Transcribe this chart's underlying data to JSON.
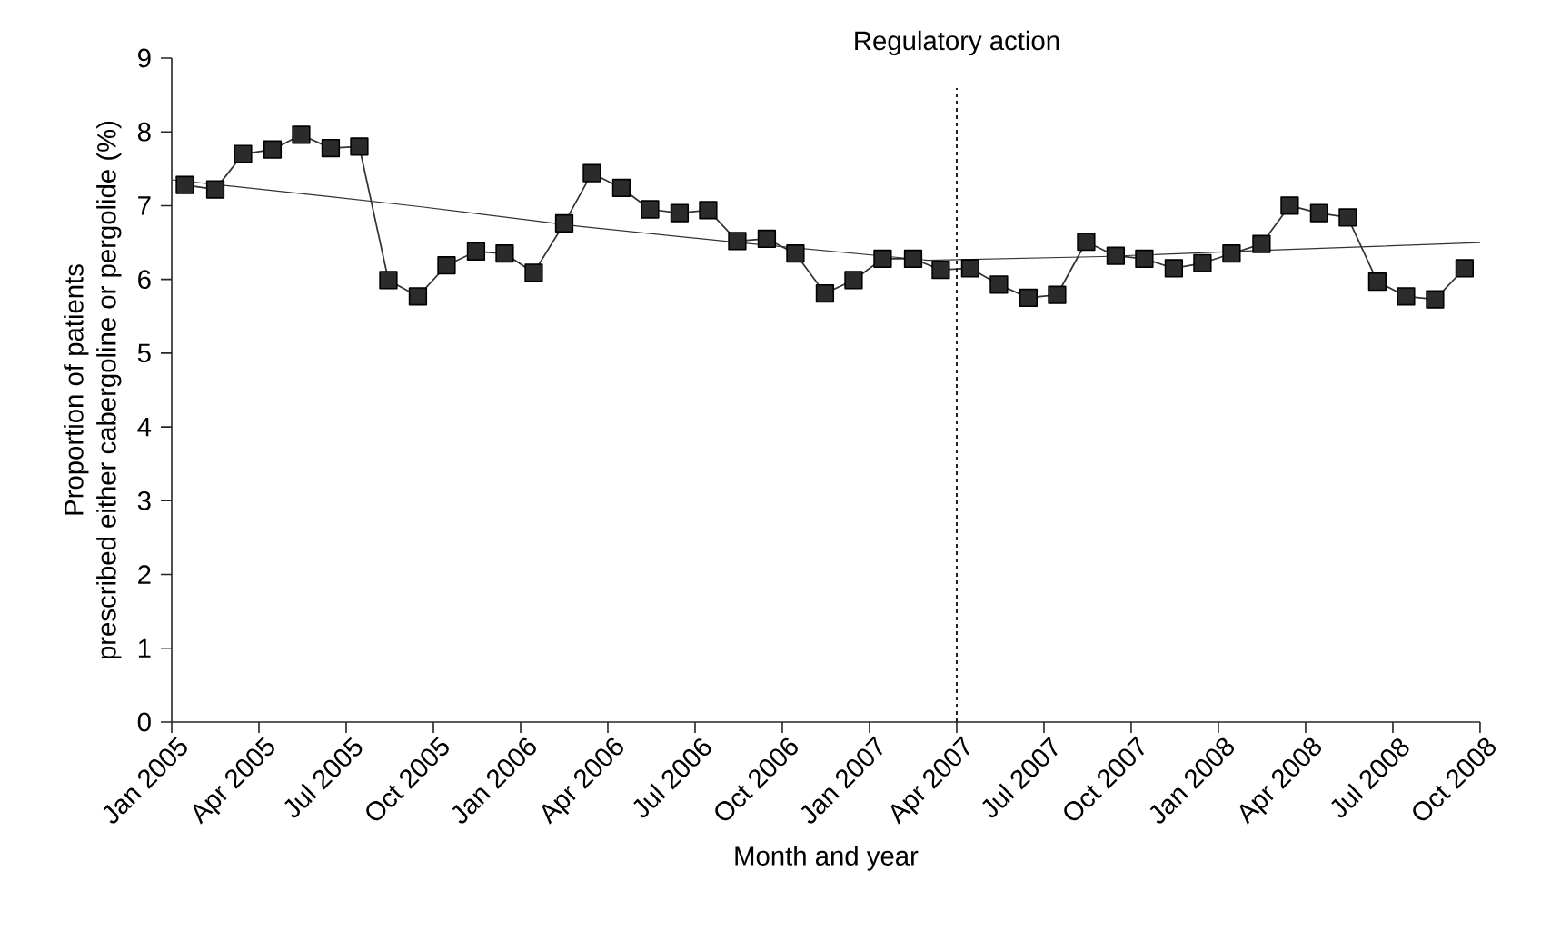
{
  "chart_data": {
    "type": "line",
    "xlabel": "Month and year",
    "ylabel": "Proportion of patients\nprescribed either cabergoline or pergolide (%)",
    "xlim": [
      "2005-01",
      "2008-10"
    ],
    "ylim": [
      0,
      9
    ],
    "xticks": [
      {
        "value": "2005-01",
        "label": "Jan 2005"
      },
      {
        "value": "2005-04",
        "label": "Apr 2005"
      },
      {
        "value": "2005-07",
        "label": "Jul 2005"
      },
      {
        "value": "2005-10",
        "label": "Oct 2005"
      },
      {
        "value": "2006-01",
        "label": "Jan 2006"
      },
      {
        "value": "2006-04",
        "label": "Apr 2006"
      },
      {
        "value": "2006-07",
        "label": "Jul 2006"
      },
      {
        "value": "2006-10",
        "label": "Oct 2006"
      },
      {
        "value": "2007-01",
        "label": "Jan 2007"
      },
      {
        "value": "2007-04",
        "label": "Apr 2007"
      },
      {
        "value": "2007-07",
        "label": "Jul 2007"
      },
      {
        "value": "2007-10",
        "label": "Oct 2007"
      },
      {
        "value": "2008-01",
        "label": "Jan 2008"
      },
      {
        "value": "2008-04",
        "label": "Apr 2008"
      },
      {
        "value": "2008-07",
        "label": "Jul 2008"
      },
      {
        "value": "2008-10",
        "label": "Oct 2008"
      }
    ],
    "yticks": [
      0,
      1,
      2,
      3,
      4,
      5,
      6,
      7,
      8,
      9
    ],
    "series": [
      {
        "color": "#333333",
        "marker": "square",
        "x": [
          "2005-01-15",
          "2005-02-15",
          "2005-03-15",
          "2005-04-15",
          "2005-05-15",
          "2005-06-15",
          "2005-07-15",
          "2005-08-15",
          "2005-09-15",
          "2005-10-15",
          "2005-11-15",
          "2005-12-15",
          "2006-01-15",
          "2006-02-15",
          "2006-03-15",
          "2006-04-15",
          "2006-05-15",
          "2006-06-15",
          "2006-07-15",
          "2006-08-15",
          "2006-09-15",
          "2006-10-15",
          "2006-11-15",
          "2006-12-15",
          "2007-01-15",
          "2007-02-15",
          "2007-03-15",
          "2007-04-15",
          "2007-05-15",
          "2007-06-15",
          "2007-07-15",
          "2007-08-15",
          "2007-09-15",
          "2007-10-15",
          "2007-11-15",
          "2007-12-15",
          "2008-01-15",
          "2008-02-15",
          "2008-03-15",
          "2008-04-15",
          "2008-05-15",
          "2008-06-15",
          "2008-07-15",
          "2008-08-15",
          "2008-09-15"
        ],
        "values": [
          7.28,
          7.22,
          7.7,
          7.76,
          7.96,
          7.78,
          7.8,
          5.99,
          5.77,
          6.19,
          6.38,
          6.35,
          6.09,
          6.76,
          7.44,
          7.24,
          6.95,
          6.9,
          6.94,
          6.52,
          6.55,
          6.35,
          5.81,
          5.99,
          6.28,
          6.28,
          6.13,
          6.15,
          5.93,
          5.75,
          5.79,
          6.51,
          6.32,
          6.28,
          6.15,
          6.22,
          6.35,
          6.48,
          7.0,
          6.9,
          6.84,
          5.97,
          5.77,
          5.73,
          6.15
        ]
      },
      {
        "color": "#333333",
        "marker": "none",
        "x": [
          "2005-01",
          "2005-06-15",
          "2005-09-15",
          "2006-03",
          "2006-09",
          "2007-03",
          "2007-09",
          "2008-03",
          "2008-10"
        ],
        "values": [
          7.35,
          7.12,
          6.99,
          6.72,
          6.48,
          6.26,
          6.31,
          6.4,
          6.5
        ]
      }
    ],
    "ref_lines": [
      {
        "axis": "x",
        "value": "2007-04",
        "label": "Regulatory action",
        "line_style": "dashed",
        "color": "#222222"
      }
    ],
    "grid": false
  }
}
